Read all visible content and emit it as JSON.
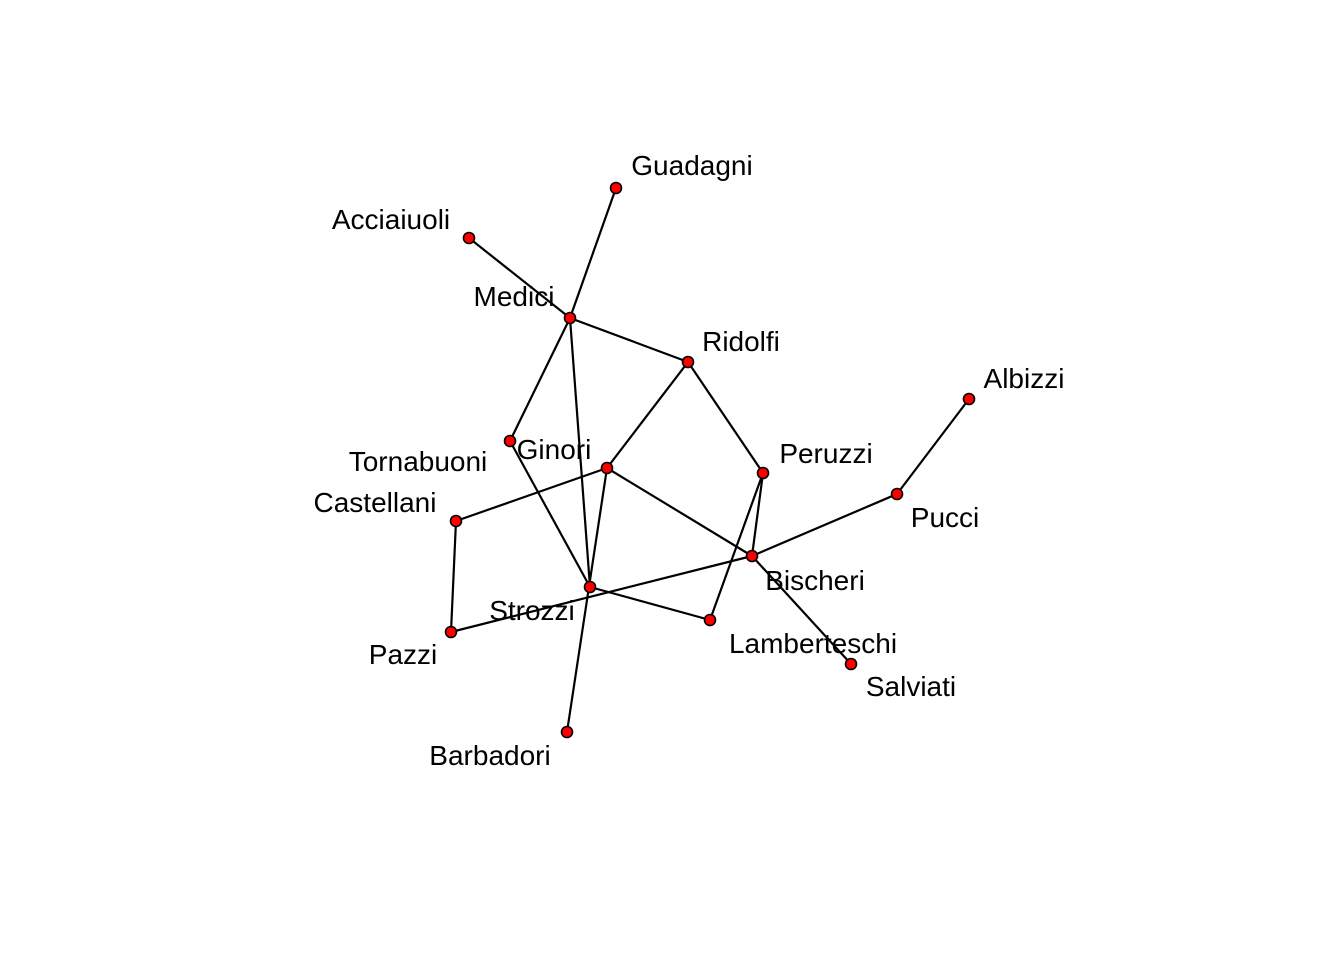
{
  "graph": {
    "node_color": "#ff0000",
    "edge_color": "#000000",
    "nodes": [
      {
        "id": "Guadagni",
        "label": "Guadagni"
      },
      {
        "id": "Acciaiuoli",
        "label": "Acciaiuoli"
      },
      {
        "id": "Medici",
        "label": "Medici"
      },
      {
        "id": "Ridolfi",
        "label": "Ridolfi"
      },
      {
        "id": "Albizzi",
        "label": "Albizzi"
      },
      {
        "id": "Tornabuoni",
        "label": "Tornabuoni"
      },
      {
        "id": "Ginori",
        "label": "Ginori"
      },
      {
        "id": "Peruzzi",
        "label": "Peruzzi"
      },
      {
        "id": "Castellani",
        "label": "Castellani"
      },
      {
        "id": "Pucci",
        "label": "Pucci"
      },
      {
        "id": "Bischeri",
        "label": "Bischeri"
      },
      {
        "id": "Strozzi",
        "label": "Strozzi"
      },
      {
        "id": "Lamberteschi",
        "label": "Lamberteschi"
      },
      {
        "id": "Pazzi",
        "label": "Pazzi"
      },
      {
        "id": "Salviati",
        "label": "Salviati"
      },
      {
        "id": "Barbadori",
        "label": "Barbadori"
      }
    ],
    "edges": [
      [
        "Acciaiuoli",
        "Medici"
      ],
      [
        "Guadagni",
        "Medici"
      ],
      [
        "Medici",
        "Ridolfi"
      ],
      [
        "Medici",
        "Tornabuoni"
      ],
      [
        "Medici",
        "Strozzi"
      ],
      [
        "Ridolfi",
        "Ginori"
      ],
      [
        "Ridolfi",
        "Peruzzi"
      ],
      [
        "Ginori",
        "Castellani"
      ],
      [
        "Ginori",
        "Bischeri"
      ],
      [
        "Ginori",
        "Barbadori"
      ],
      [
        "Tornabuoni",
        "Strozzi"
      ],
      [
        "Castellani",
        "Pazzi"
      ],
      [
        "Pazzi",
        "Bischeri"
      ],
      [
        "Strozzi",
        "Lamberteschi"
      ],
      [
        "Bischeri",
        "Pucci"
      ],
      [
        "Bischeri",
        "Salviati"
      ],
      [
        "Peruzzi",
        "Bischeri"
      ],
      [
        "Peruzzi",
        "Lamberteschi"
      ],
      [
        "Albizzi",
        "Pucci"
      ]
    ]
  }
}
